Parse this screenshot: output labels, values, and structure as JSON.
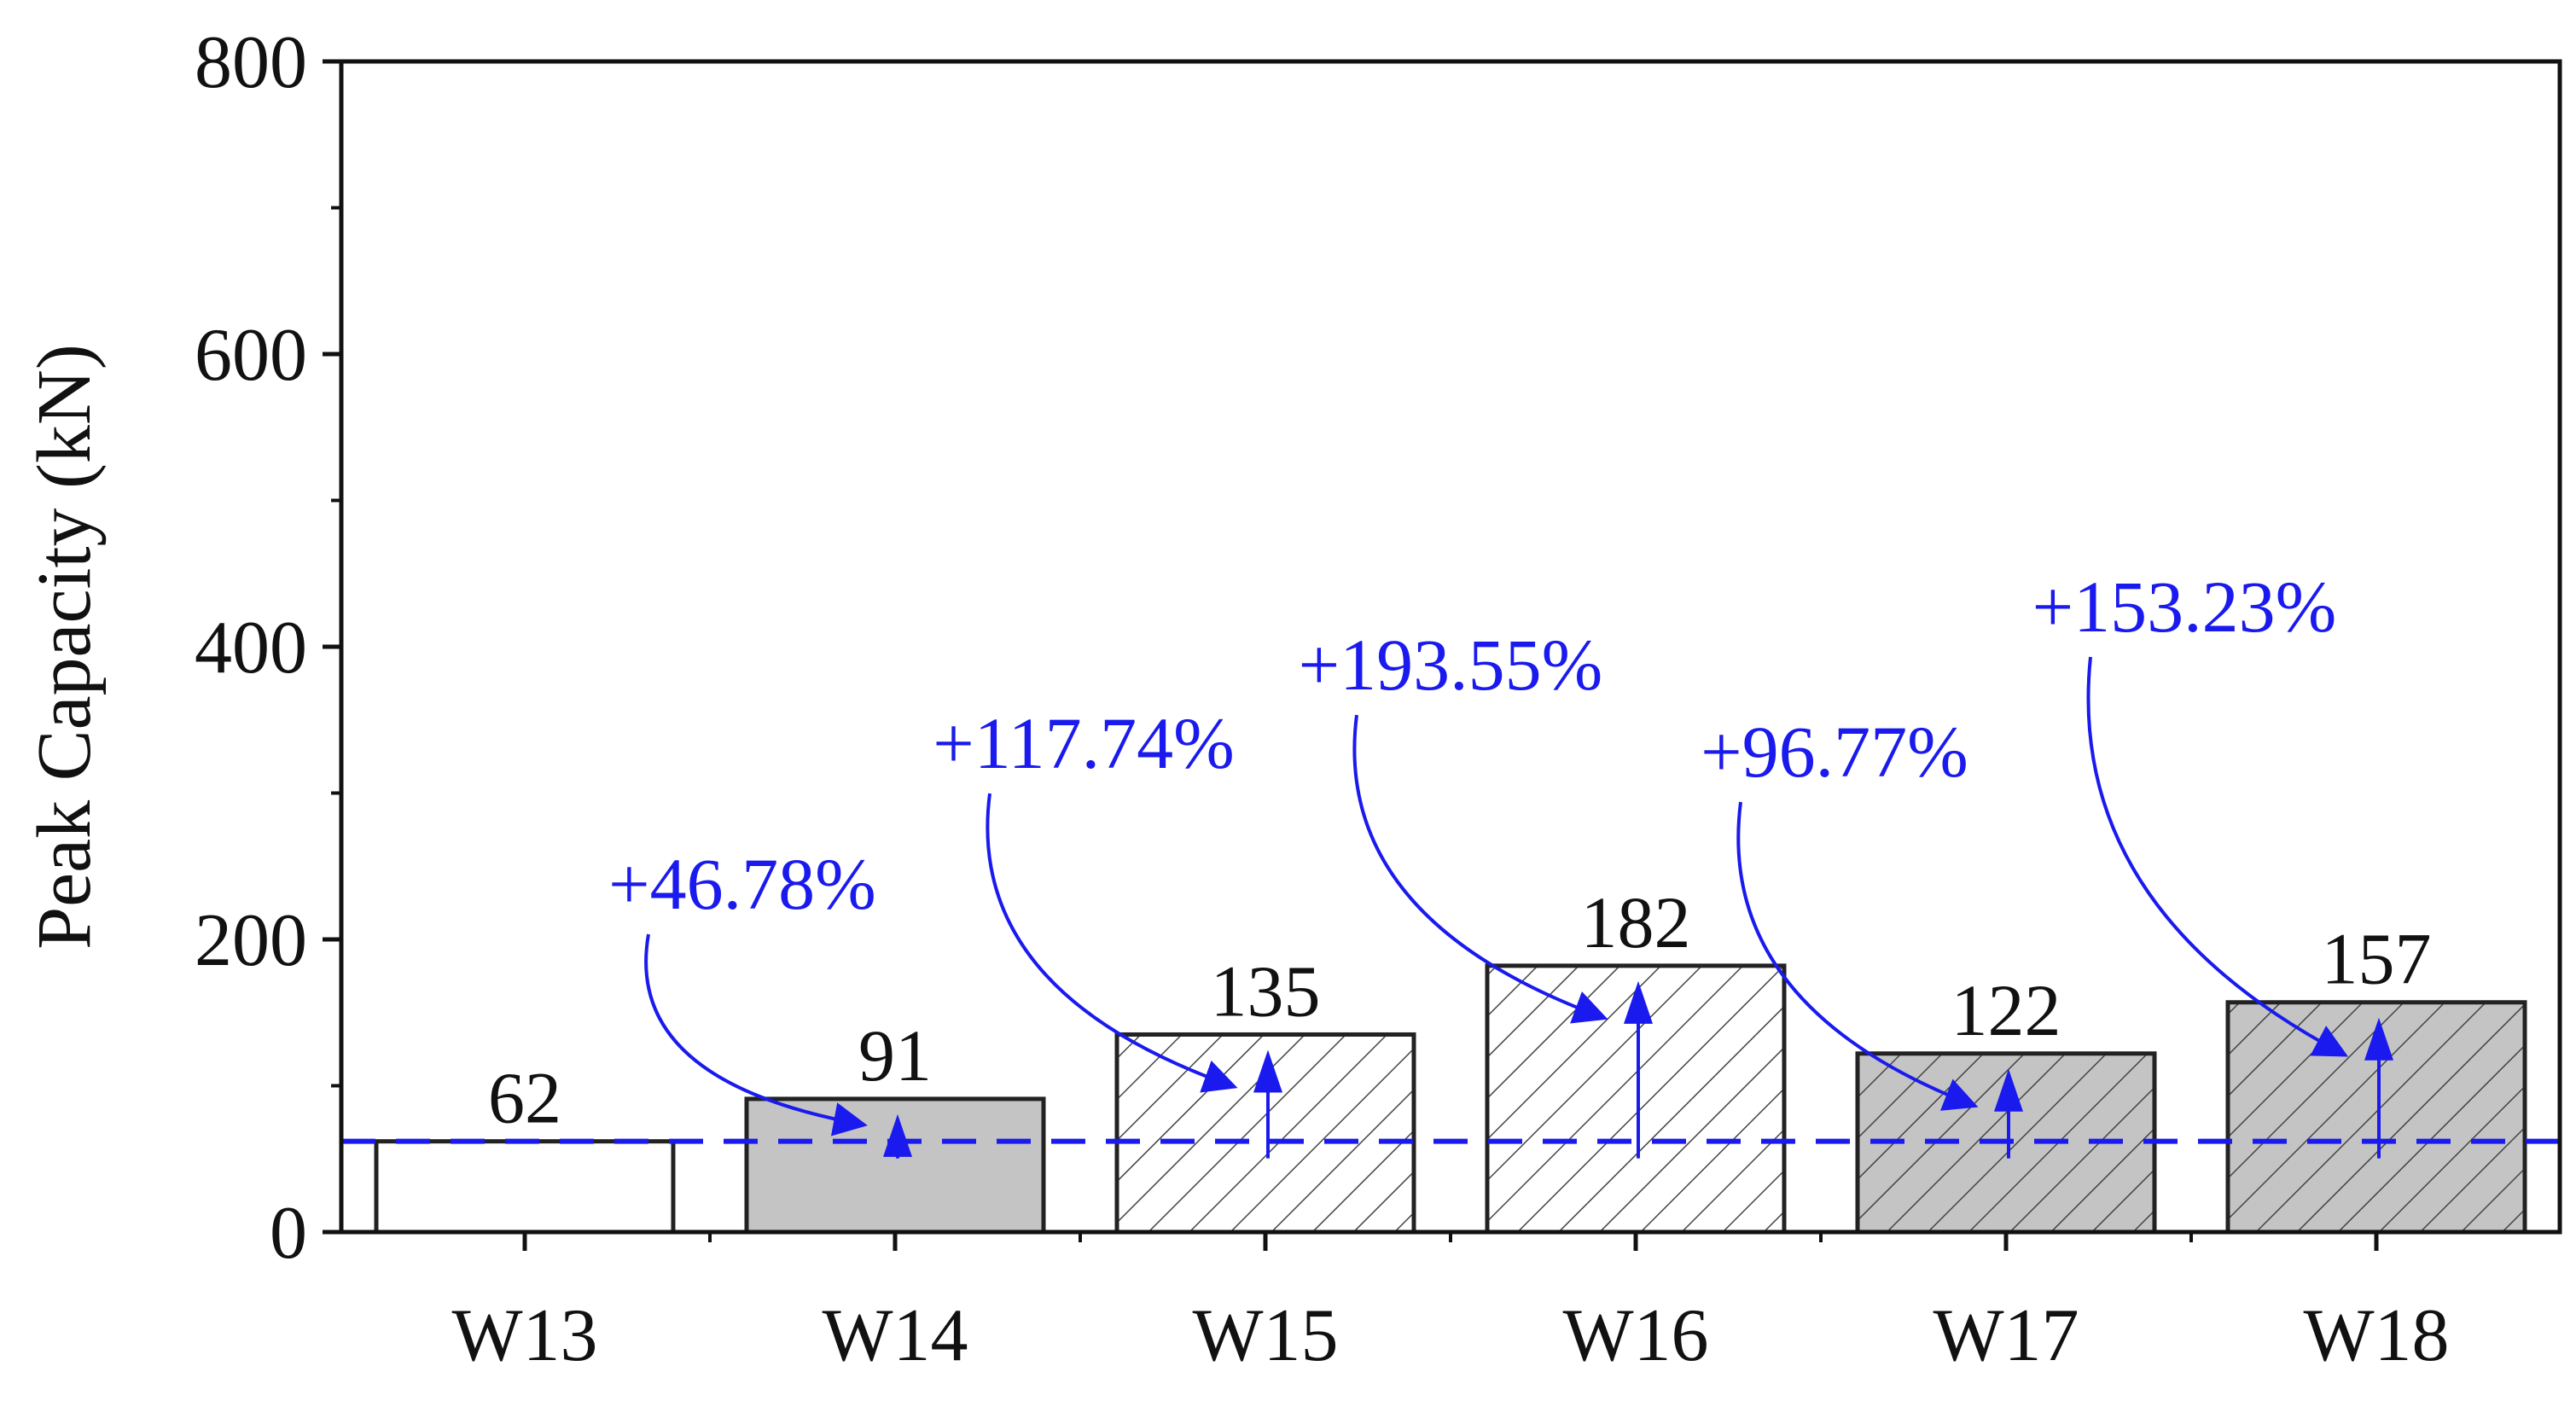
{
  "chart_data": {
    "type": "bar",
    "categories": [
      "W13",
      "W14",
      "W15",
      "W16",
      "W17",
      "W18"
    ],
    "values": [
      62,
      91,
      135,
      182,
      122,
      157
    ],
    "data_labels": [
      "62",
      "91",
      "135",
      "182",
      "122",
      "157"
    ],
    "ylabel": "Peak Capacity (kN)",
    "xlabel": "",
    "ylim": [
      0,
      800
    ],
    "yticks": [
      0,
      200,
      400,
      600,
      800
    ],
    "ytick_labels": [
      "0",
      "200",
      "400",
      "600",
      "800"
    ],
    "grid": false,
    "legend": "none",
    "bar_styles": [
      {
        "fill": "#ffffff",
        "hatch": false
      },
      {
        "fill": "#c4c4c4",
        "hatch": false
      },
      {
        "fill": "#ffffff",
        "hatch": true
      },
      {
        "fill": "#ffffff",
        "hatch": true
      },
      {
        "fill": "#c4c4c4",
        "hatch": true
      },
      {
        "fill": "#c4c4c4",
        "hatch": true
      }
    ],
    "reference_line": {
      "value": 62,
      "style": "dashed",
      "color": "#1a1aee"
    },
    "annotations": [
      {
        "category": "W14",
        "text": "+46.78%",
        "value": 46.78
      },
      {
        "category": "W15",
        "text": "+117.74%",
        "value": 117.74
      },
      {
        "category": "W16",
        "text": "+193.55%",
        "value": 193.55
      },
      {
        "category": "W17",
        "text": "+96.77%",
        "value": 96.77
      },
      {
        "category": "W18",
        "text": "+153.23%",
        "value": 153.23
      }
    ],
    "colors": {
      "annotation": "#1a1aee",
      "axis": "#111111",
      "bar_edge": "#222222"
    }
  }
}
